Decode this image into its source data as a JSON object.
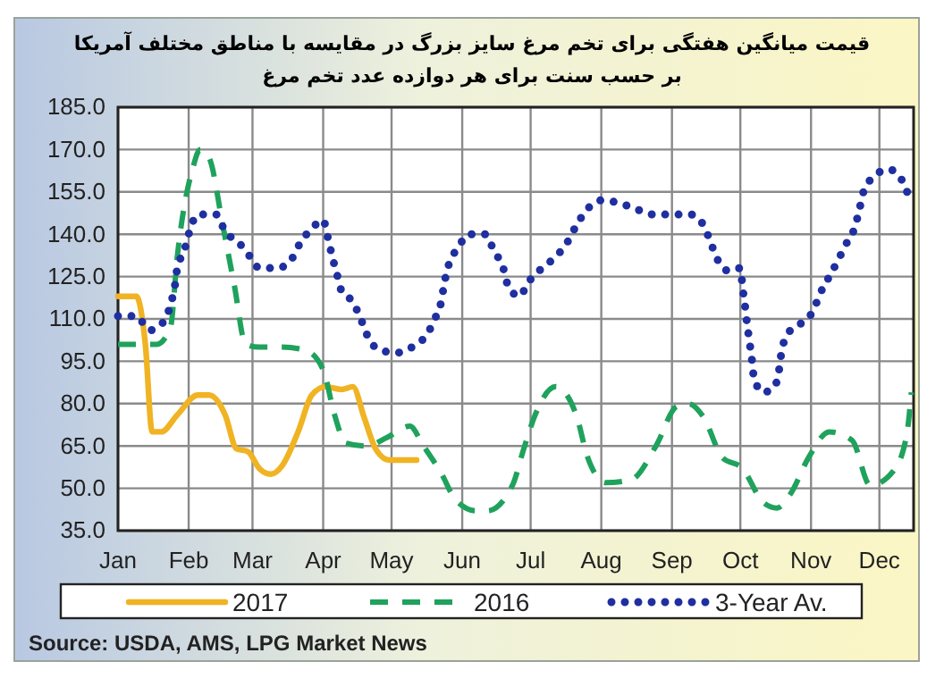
{
  "chart_data": {
    "type": "line",
    "title": "قیمت میانگین هفتگی برای تخم مرغ سایز بزرگ در مقایسه با مناطق مختلف آمریکا",
    "subtitle": "بر حسب سنت برای هر دوازده عدد تخم مرغ",
    "annotations": [
      "Source: USDA, AMS, LPG  Market News"
    ],
    "xlim": [
      "--01-01",
      "--12-16"
    ],
    "xticks": [
      {
        "value": "--01-01",
        "label": "Jan"
      },
      {
        "value": "--02-01",
        "label": "Feb"
      },
      {
        "value": "--03-01",
        "label": "Mar"
      },
      {
        "value": "--04-01",
        "label": "Apr"
      },
      {
        "value": "--05-01",
        "label": "May"
      },
      {
        "value": "--06-01",
        "label": "Jun"
      },
      {
        "value": "--07-01",
        "label": "Jul"
      },
      {
        "value": "--08-01",
        "label": "Aug"
      },
      {
        "value": "--09-01",
        "label": "Sep"
      },
      {
        "value": "--10-01",
        "label": "Oct"
      },
      {
        "value": "--11-01",
        "label": "Nov"
      },
      {
        "value": "--12-01",
        "label": "Dec"
      }
    ],
    "ylim": [
      35,
      185
    ],
    "yticks": [
      {
        "value": 35,
        "label": "35.0"
      },
      {
        "value": 50,
        "label": "50.0"
      },
      {
        "value": 65,
        "label": "65.0"
      },
      {
        "value": 80,
        "label": "80.0"
      },
      {
        "value": 95,
        "label": "95.0"
      },
      {
        "value": 110,
        "label": "110.0"
      },
      {
        "value": 125,
        "label": "125.0"
      },
      {
        "value": 140,
        "label": "140.0"
      },
      {
        "value": 155,
        "label": "155.0"
      },
      {
        "value": 170,
        "label": "170.0"
      },
      {
        "value": 185,
        "label": "185.0"
      }
    ],
    "grid": true,
    "legend": "bottom",
    "marker": "none",
    "series": [
      {
        "name": "2017",
        "color": "#f0b323",
        "line_style": "solid",
        "x": [
          "--01-01",
          "--01-09",
          "--01-13",
          "--01-16",
          "--01-20",
          "--01-27",
          "--02-05",
          "--02-10",
          "--02-17",
          "--02-22",
          "--02-27",
          "--03-04",
          "--03-09",
          "--03-14",
          "--03-21",
          "--03-27",
          "--04-02",
          "--04-09",
          "--04-14",
          "--04-19",
          "--04-24",
          "--04-30",
          "--05-12"
        ],
        "values": [
          118,
          118,
          101,
          70,
          70,
          76,
          83,
          83,
          76,
          64,
          63,
          57,
          55,
          58,
          70,
          83,
          86,
          85,
          86,
          75,
          64,
          60,
          60
        ]
      },
      {
        "name": "2016",
        "color": "#1fa25c",
        "line_style": "dashed",
        "x": [
          "--01-01",
          "--01-09",
          "--01-18",
          "--01-24",
          "--01-27",
          "--02-03",
          "--02-06",
          "--02-10",
          "--02-16",
          "--02-21",
          "--02-26",
          "--03-04",
          "--03-14",
          "--03-24",
          "--04-01",
          "--04-06",
          "--04-11",
          "--04-20",
          "--04-29",
          "--05-09",
          "--05-15",
          "--05-23",
          "--05-29",
          "--06-07",
          "--06-12",
          "--06-23",
          "--06-28",
          "--07-03",
          "--07-12",
          "--07-21",
          "--07-26",
          "--08-03",
          "--08-14",
          "--08-25",
          "--09-03",
          "--09-08",
          "--09-15",
          "--09-23",
          "--10-02",
          "--10-11",
          "--10-17",
          "--10-23",
          "--10-31",
          "--11-09",
          "--11-19",
          "--11-27",
          "--12-07",
          "--12-13",
          "--12-15"
        ],
        "values": [
          101,
          101,
          101,
          107,
          132,
          164,
          170,
          167,
          143,
          122,
          101,
          100,
          100,
          99,
          92,
          76,
          66,
          65,
          68,
          72,
          65,
          55,
          46,
          42,
          42,
          51,
          64,
          76,
          86,
          76,
          61,
          52,
          53,
          65,
          79,
          80,
          75,
          61,
          57,
          45,
          43,
          48,
          61,
          70,
          67,
          51,
          56,
          69,
          84
        ]
      },
      {
        "name": "3-Year Av.",
        "color": "#1f2fa0",
        "line_style": "dotted",
        "x": [
          "--01-01",
          "--01-09",
          "--01-15",
          "--01-21",
          "--01-24",
          "--01-26",
          "--01-27",
          "--01-30",
          "--02-01",
          "--02-05",
          "--02-13",
          "--02-17",
          "--02-23",
          "--02-28",
          "--03-04",
          "--03-12",
          "--03-18",
          "--03-22",
          "--03-27",
          "--04-01",
          "--04-03",
          "--04-05",
          "--04-07",
          "--04-09",
          "--04-14",
          "--04-18",
          "--04-21",
          "--04-26",
          "--05-03",
          "--05-10",
          "--05-16",
          "--05-20",
          "--05-23",
          "--05-24",
          "--05-26",
          "--05-30",
          "--06-04",
          "--06-11",
          "--06-15",
          "--06-19",
          "--06-21",
          "--06-26",
          "--06-30",
          "--07-06",
          "--07-12",
          "--07-17",
          "--07-21",
          "--07-25",
          "--08-01",
          "--08-09",
          "--08-16",
          "--08-24",
          "--09-02",
          "--09-09",
          "--09-15",
          "--09-18",
          "--09-21",
          "--09-26",
          "--10-01",
          "--10-02",
          "--10-03",
          "--10-04",
          "--10-05",
          "--10-06",
          "--10-07",
          "--10-11",
          "--10-16",
          "--10-18",
          "--10-19",
          "--10-22",
          "--10-27",
          "--11-02",
          "--11-05",
          "--11-09",
          "--11-13",
          "--11-16",
          "--11-20",
          "--11-22",
          "--11-24",
          "--11-28",
          "--12-05",
          "--12-11",
          "--12-14"
        ],
        "values": [
          111,
          111,
          106,
          109,
          115,
          122,
          128,
          134,
          140,
          147,
          147,
          141,
          137,
          132,
          128,
          128,
          131,
          137,
          142,
          145,
          139,
          132,
          126,
          120,
          116,
          109,
          103,
          99,
          98,
          100,
          104,
          110,
          117,
          122,
          129,
          135,
          140,
          140,
          134,
          128,
          122,
          118,
          123,
          128,
          132,
          137,
          143,
          148,
          152,
          151,
          149,
          147,
          147,
          147,
          143,
          137,
          131,
          127,
          128,
          121,
          115,
          108,
          102,
          96,
          89,
          84,
          86,
          92,
          98,
          105,
          108,
          113,
          119,
          125,
          131,
          136,
          142,
          148,
          155,
          160,
          163,
          159,
          153
        ]
      }
    ]
  }
}
